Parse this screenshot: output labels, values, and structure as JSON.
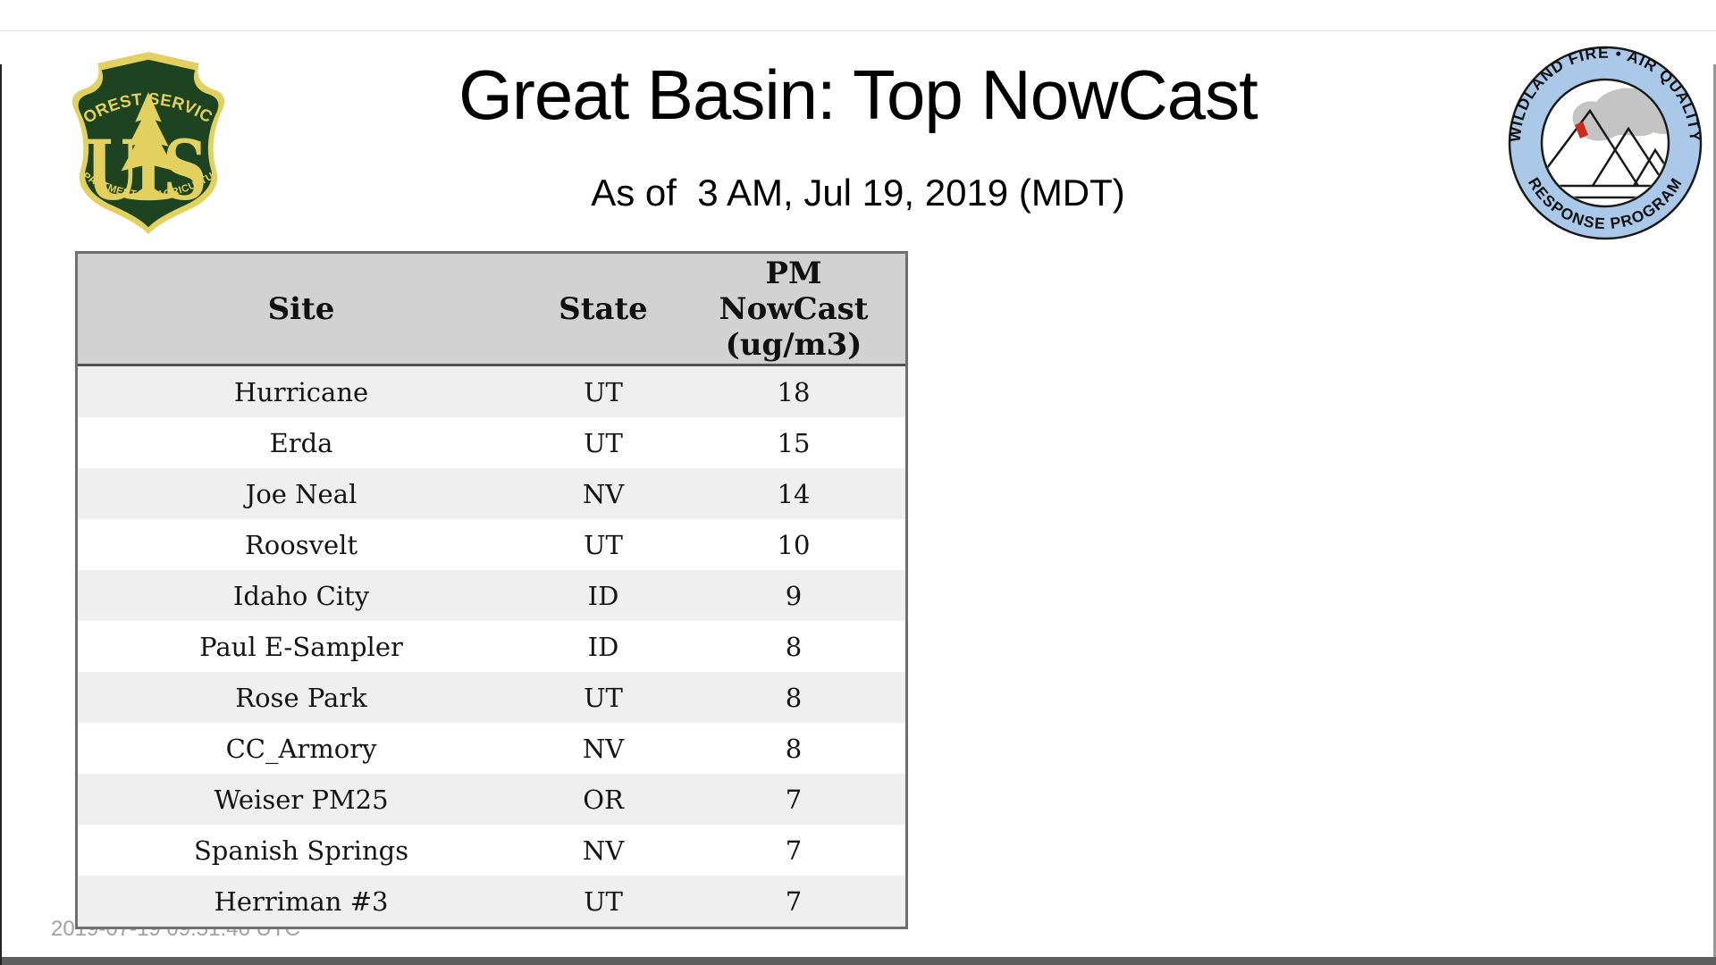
{
  "page": {
    "title": "Great Basin: Top NowCast",
    "subtitle": "As of  3 AM, Jul 19, 2019 (MDT)",
    "generated_timestamp": "2019-07-19 09:51:46 UTC"
  },
  "logos": {
    "forest_service": {
      "arc_top": "FOREST SERVICE",
      "letter_left": "U",
      "letter_right": "S",
      "arc_bottom": "DEPARTMENT OF AGRICULTURE",
      "colors": {
        "green": "#1d4321",
        "gold": "#e2d15f"
      }
    },
    "air_quality_program": {
      "arc_top": "WILDLAND FIRE • AIR QUALITY",
      "arc_bottom": "RESPONSE PROGRAM",
      "colors": {
        "ring": "#aac9e8",
        "inner": "#ffffff",
        "smoke": "#c4c4c4",
        "flame": "#d0281c",
        "outline": "#1a1a1a"
      }
    }
  },
  "table": {
    "columns": [
      "Site",
      "State",
      "PM NowCast (ug/m3)"
    ],
    "pm_header_lines": [
      "PM",
      "NowCast",
      "(ug/m3)"
    ],
    "rows": [
      {
        "site": "Hurricane",
        "state": "UT",
        "value": "18"
      },
      {
        "site": "Erda",
        "state": "UT",
        "value": "15"
      },
      {
        "site": "Joe Neal",
        "state": "NV",
        "value": "14"
      },
      {
        "site": "Roosvelt",
        "state": "UT",
        "value": "10"
      },
      {
        "site": "Idaho City",
        "state": "ID",
        "value": "9"
      },
      {
        "site": "Paul E-Sampler",
        "state": "ID",
        "value": "8"
      },
      {
        "site": "Rose Park",
        "state": "UT",
        "value": "8"
      },
      {
        "site": "CC_Armory",
        "state": "NV",
        "value": "8"
      },
      {
        "site": "Weiser PM25",
        "state": "OR",
        "value": "7"
      },
      {
        "site": "Spanish Springs",
        "state": "NV",
        "value": "7"
      },
      {
        "site": "Herriman #3",
        "state": "UT",
        "value": "7"
      }
    ],
    "colors": {
      "header_bg": "#d2d2d2",
      "alt_row_bg": "#efefef",
      "border": "#6f6f6f",
      "header_divider": "#515151"
    }
  }
}
